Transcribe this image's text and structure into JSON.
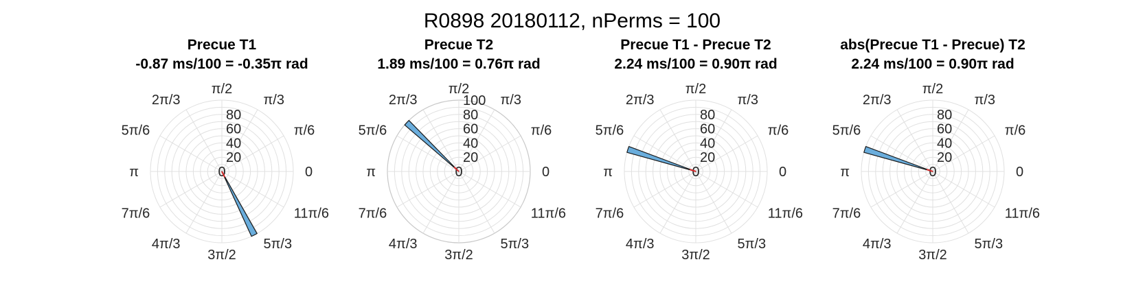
{
  "figure": {
    "title": "R0898 20180112, nPerms = 100"
  },
  "colors": {
    "bar_fill": "#6aaddc",
    "bar_edge": "#1a1a1a",
    "arrow": "#d62728",
    "grid": "#e0e0e0",
    "outer_ring": "#c8c8c8",
    "text": "#262626"
  },
  "angle_labels": [
    "0",
    "π/6",
    "π/3",
    "π/2",
    "2π/3",
    "5π/6",
    "π",
    "7π/6",
    "4π/3",
    "3π/2",
    "5π/3",
    "11π/6"
  ],
  "chart_data": [
    {
      "type": "polar-histogram",
      "title": "Precue T1",
      "subtitle": "-0.87 ms/100 = -0.35π rad",
      "rlim": [
        0,
        100
      ],
      "r_ticks": [
        "20",
        "40",
        "60",
        "80"
      ],
      "outer_ring_visible": false,
      "bar": {
        "center_angle_pi": -0.35,
        "width_deg": 5,
        "count": 100
      },
      "arrow": {
        "angle_pi": -0.35,
        "length": 3
      }
    },
    {
      "type": "polar-histogram",
      "title": "Precue T2",
      "subtitle": "1.89 ms/100 = 0.76π rad",
      "rlim": [
        0,
        100
      ],
      "r_ticks": [
        "20",
        "40",
        "60",
        "80",
        "100"
      ],
      "outer_ring_visible": true,
      "bar": {
        "center_angle_pi": 0.76,
        "width_deg": 5,
        "count": 100
      },
      "arrow": {
        "angle_pi": 0.76,
        "length": 3
      }
    },
    {
      "type": "polar-histogram",
      "title": "Precue T1 - Precue T2",
      "subtitle": "2.24 ms/100 = 0.90π rad",
      "rlim": [
        0,
        100
      ],
      "r_ticks": [
        "20",
        "40",
        "60",
        "80"
      ],
      "outer_ring_visible": false,
      "bar": {
        "center_angle_pi": 0.9,
        "width_deg": 5,
        "count": 100
      },
      "arrow": {
        "angle_pi": 0.9,
        "length": 3
      }
    },
    {
      "type": "polar-histogram",
      "title": "abs(Precue T1 - Precue) T2",
      "subtitle": "2.24 ms/100 = 0.90π rad",
      "rlim": [
        0,
        100
      ],
      "r_ticks": [
        "20",
        "40",
        "60",
        "80"
      ],
      "outer_ring_visible": false,
      "bar": {
        "center_angle_pi": 0.9,
        "width_deg": 5,
        "count": 100
      },
      "arrow": {
        "angle_pi": 0.9,
        "length": 3
      }
    }
  ]
}
